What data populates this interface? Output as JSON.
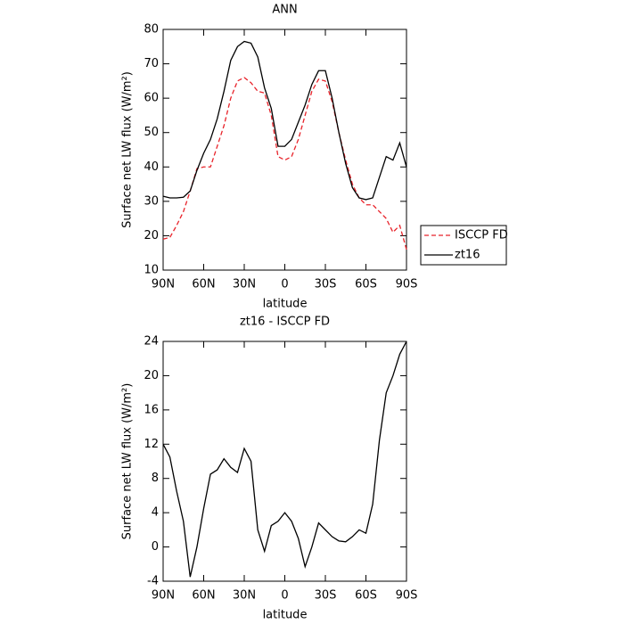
{
  "chart_data": [
    {
      "type": "line",
      "title": "ANN",
      "x_label": "latitude",
      "y_label": "Surface net LW flux (W/m²)",
      "x": [
        90,
        85,
        80,
        75,
        70,
        65,
        60,
        55,
        50,
        45,
        40,
        35,
        30,
        25,
        20,
        15,
        10,
        5,
        0,
        -5,
        -10,
        -15,
        -20,
        -25,
        -30,
        -35,
        -40,
        -45,
        -50,
        -55,
        -60,
        -65,
        -70,
        -75,
        -80,
        -85,
        -90
      ],
      "series": [
        {
          "name": "ISCCP FD",
          "color": "#e8232a",
          "linestyle": "dashed",
          "values": [
            19,
            19.5,
            23,
            27,
            33,
            39.5,
            40,
            40,
            46,
            52,
            60,
            65,
            66,
            64.5,
            62,
            61.5,
            55,
            43,
            42,
            43,
            48,
            55,
            62,
            65.5,
            65,
            59,
            50,
            42,
            35,
            31,
            29,
            29,
            27,
            25,
            21,
            23,
            16
          ]
        },
        {
          "name": "zt16",
          "color": "#000000",
          "linestyle": "solid",
          "values": [
            31.5,
            31,
            31,
            31.2,
            33,
            39,
            44,
            48,
            54,
            62,
            71,
            75,
            76.5,
            76,
            72,
            63,
            57,
            46,
            46,
            48,
            53,
            58,
            64,
            68,
            68,
            60,
            50,
            41,
            34,
            31,
            30.5,
            31,
            37,
            43,
            42,
            47,
            40
          ]
        }
      ],
      "xlim": [
        90,
        -90
      ],
      "xticks": [
        {
          "value": 90,
          "label": "90N"
        },
        {
          "value": 60,
          "label": "60N"
        },
        {
          "value": 30,
          "label": "30N"
        },
        0,
        {
          "value": -30,
          "label": "30S"
        },
        {
          "value": -60,
          "label": "60S"
        },
        {
          "value": -90,
          "label": "90S"
        }
      ],
      "ylim": [
        10,
        80
      ],
      "yticks": [
        10,
        20,
        30,
        40,
        50,
        60,
        70,
        80
      ],
      "legend": "right"
    },
    {
      "type": "line",
      "title": "zt16 - ISCCP FD",
      "x_label": "latitude",
      "y_label": "Surface net LW flux (W/m²)",
      "x": [
        90,
        85,
        80,
        75,
        70,
        65,
        60,
        55,
        50,
        45,
        40,
        35,
        30,
        25,
        20,
        15,
        10,
        5,
        0,
        -5,
        -10,
        -15,
        -20,
        -25,
        -30,
        -35,
        -40,
        -45,
        -50,
        -55,
        -60,
        -65,
        -70,
        -75,
        -80,
        -85,
        -90
      ],
      "values": [
        12,
        10.5,
        6.5,
        3,
        -3.5,
        0,
        4.5,
        8.5,
        9,
        10.3,
        9.3,
        8.7,
        11.5,
        10,
        2,
        -0.5,
        2.5,
        3,
        4,
        3,
        1,
        -2.3,
        0,
        2.8,
        2,
        1.2,
        0.7,
        0.6,
        1.2,
        2,
        1.6,
        5,
        12.5,
        18,
        20,
        22.5,
        24
      ],
      "color": "#000000",
      "xlim": [
        90,
        -90
      ],
      "xticks": [
        {
          "value": 90,
          "label": "90N"
        },
        {
          "value": 60,
          "label": "60N"
        },
        {
          "value": 30,
          "label": "30N"
        },
        0,
        {
          "value": -30,
          "label": "30S"
        },
        {
          "value": -60,
          "label": "60S"
        },
        {
          "value": -90,
          "label": "90S"
        }
      ],
      "ylim": [
        -4,
        24
      ],
      "yticks": [
        -4,
        0,
        4,
        8,
        12,
        16,
        20,
        24
      ]
    }
  ]
}
